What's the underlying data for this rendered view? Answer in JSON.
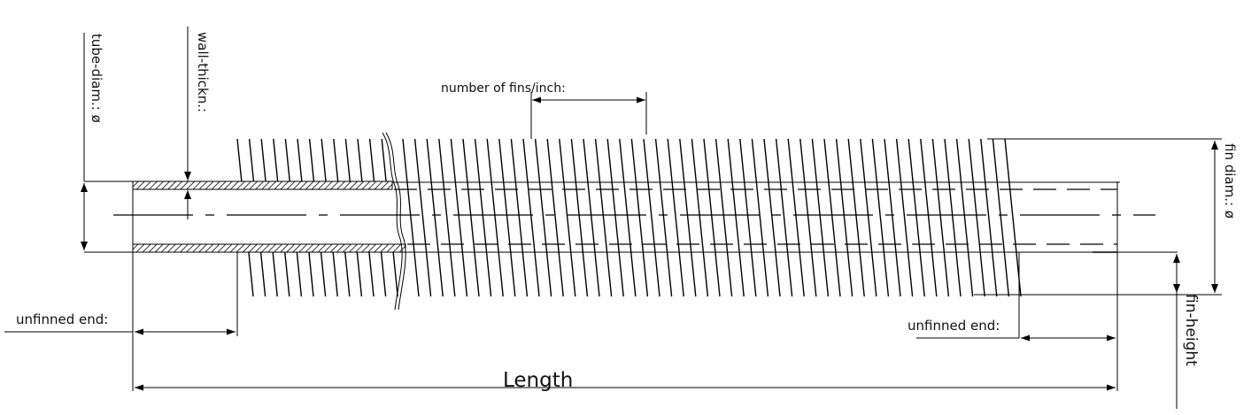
{
  "labels": {
    "tube_diam": "tube-diam.: ø",
    "wall_thickness": "wall-thickn.:",
    "fins_per_inch": "number of fins/inch:",
    "fin_diam": "fin diam.: ø",
    "fin_height": "fin-height",
    "unfinned_end_left": "unfinned end:",
    "unfinned_end_right": "unfinned end:",
    "length": "Length"
  },
  "colors": {
    "line": "#000000",
    "text": "#111111",
    "background": "#ffffff"
  }
}
